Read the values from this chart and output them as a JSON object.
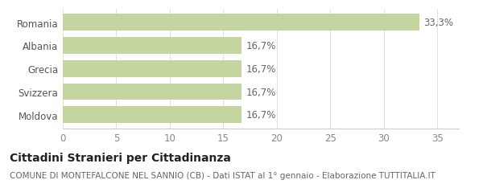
{
  "categories": [
    "Moldova",
    "Svizzera",
    "Grecia",
    "Albania",
    "Romania"
  ],
  "values": [
    16.7,
    16.7,
    16.7,
    16.7,
    33.3
  ],
  "bar_labels": [
    "16,7%",
    "16,7%",
    "16,7%",
    "16,7%",
    "33,3%"
  ],
  "bar_color": "#c5d5a0",
  "bar_edge_color": "none",
  "background_color": "#ffffff",
  "xlim": [
    0,
    37
  ],
  "xticks": [
    0,
    5,
    10,
    15,
    20,
    25,
    30,
    35
  ],
  "title_bold": "Cittadini Stranieri per Cittadinanza",
  "subtitle": "COMUNE DI MONTEFALCONE NEL SANNIO (CB) - Dati ISTAT al 1° gennaio - Elaborazione TUTTITALIA.IT",
  "title_fontsize": 10,
  "subtitle_fontsize": 7.5,
  "tick_fontsize": 8.5,
  "label_fontsize": 8.5,
  "bar_height": 0.72,
  "label_color": "#666666",
  "ytick_color": "#555555",
  "xtick_color": "#888888",
  "spine_color": "#cccccc",
  "grid_color": "#e0e0e0"
}
